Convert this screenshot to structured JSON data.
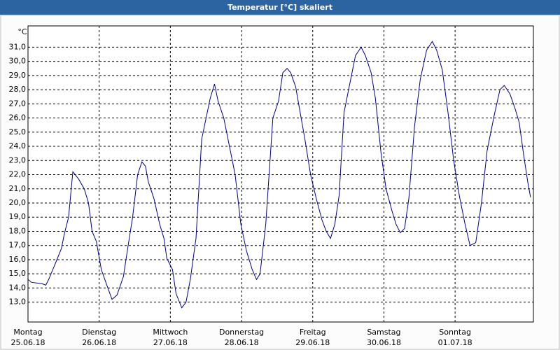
{
  "chart_data": {
    "type": "line",
    "title": "Temperatur [°C] skaliert",
    "y_unit": "°C",
    "xlim": [
      0,
      7.1
    ],
    "ylim": [
      11.6,
      32.5
    ],
    "grid": true,
    "xticks": [
      {
        "value": 0,
        "label": [
          "Montag",
          "25.06.18"
        ]
      },
      {
        "value": 1,
        "label": [
          "Dienstag",
          "26.06.18"
        ]
      },
      {
        "value": 2,
        "label": [
          "Mittwoch",
          "27.06.18"
        ]
      },
      {
        "value": 3,
        "label": [
          "Donnerstag",
          "28.06.18"
        ]
      },
      {
        "value": 4,
        "label": [
          "Freitag",
          "29.06.18"
        ]
      },
      {
        "value": 5,
        "label": [
          "Samstag",
          "30.06.18"
        ]
      },
      {
        "value": 6,
        "label": [
          "Sonntag",
          "01.07.18"
        ]
      }
    ],
    "yticks": [
      {
        "value": 13,
        "label": "13,0"
      },
      {
        "value": 14,
        "label": "14,0"
      },
      {
        "value": 15,
        "label": "15,0"
      },
      {
        "value": 16,
        "label": "16,0"
      },
      {
        "value": 17,
        "label": "17,0"
      },
      {
        "value": 18,
        "label": "18,0"
      },
      {
        "value": 19,
        "label": "19,0"
      },
      {
        "value": 20,
        "label": "20,0"
      },
      {
        "value": 21,
        "label": "21,0"
      },
      {
        "value": 22,
        "label": "22,0"
      },
      {
        "value": 23,
        "label": "23,0"
      },
      {
        "value": 24,
        "label": "24,0"
      },
      {
        "value": 25,
        "label": "25,0"
      },
      {
        "value": 26,
        "label": "26,0"
      },
      {
        "value": 27,
        "label": "27,0"
      },
      {
        "value": 28,
        "label": "28,0"
      },
      {
        "value": 29,
        "label": "29,0"
      },
      {
        "value": 30,
        "label": "30,0"
      },
      {
        "value": 31,
        "label": "31,0"
      }
    ],
    "x": [
      0,
      0.05,
      0.2,
      0.25,
      0.29,
      0.39,
      0.47,
      0.51,
      0.57,
      0.63,
      0.71,
      0.79,
      0.85,
      0.9,
      0.96,
      1.03,
      1.1,
      1.18,
      1.25,
      1.34,
      1.41,
      1.47,
      1.54,
      1.6,
      1.65,
      1.69,
      1.77,
      1.85,
      1.91,
      1.95,
      2.03,
      2.08,
      2.16,
      2.22,
      2.28,
      2.36,
      2.44,
      2.56,
      2.62,
      2.67,
      2.75,
      2.83,
      2.91,
      2.99,
      3.07,
      3.15,
      3.21,
      3.26,
      3.34,
      3.44,
      3.52,
      3.58,
      3.64,
      3.69,
      3.76,
      3.83,
      3.89,
      3.97,
      4.05,
      4.13,
      4.19,
      4.25,
      4.31,
      4.37,
      4.44,
      4.52,
      4.6,
      4.68,
      4.74,
      4.82,
      4.88,
      4.96,
      5.03,
      5.11,
      5.17,
      5.23,
      5.29,
      5.35,
      5.43,
      5.51,
      5.6,
      5.68,
      5.74,
      5.82,
      5.9,
      5.98,
      6.06,
      6.14,
      6.21,
      6.29,
      6.37,
      6.45,
      6.55,
      6.63,
      6.69,
      6.77,
      6.84,
      6.9,
      6.96,
      7.02,
      7.06
    ],
    "series": [
      {
        "color": "#00008b",
        "values": [
          14.6,
          14.4,
          14.3,
          14.2,
          14.6,
          15.8,
          16.8,
          17.8,
          19.0,
          22.2,
          21.7,
          21.0,
          20.0,
          18.0,
          17.3,
          15.3,
          14.3,
          13.2,
          13.5,
          14.8,
          17.1,
          19.0,
          22.0,
          22.9,
          22.6,
          21.5,
          20.3,
          18.5,
          17.5,
          16.1,
          15.3,
          13.6,
          12.6,
          13.0,
          14.6,
          17.5,
          24.5,
          27.4,
          28.4,
          27.2,
          26.0,
          24.0,
          22.0,
          18.5,
          16.6,
          15.3,
          14.6,
          15.0,
          18.5,
          26.0,
          27.2,
          29.2,
          29.5,
          29.2,
          28.2,
          26.2,
          24.5,
          22.0,
          20.3,
          18.8,
          18.0,
          17.5,
          18.5,
          20.5,
          26.4,
          28.4,
          30.4,
          31.0,
          30.4,
          29.2,
          27.4,
          23.5,
          21.0,
          19.5,
          18.5,
          17.9,
          18.2,
          20.3,
          25.4,
          28.7,
          30.8,
          31.4,
          30.8,
          29.4,
          26.4,
          23.0,
          20.5,
          18.5,
          17.0,
          17.2,
          20.0,
          23.7,
          26.2,
          28.0,
          28.3,
          27.7,
          26.7,
          25.7,
          23.5,
          21.5,
          20.4
        ]
      }
    ]
  }
}
